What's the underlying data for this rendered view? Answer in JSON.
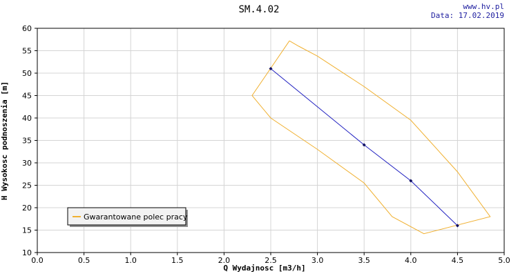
{
  "header": {
    "title": "SM.4.02",
    "site": "www.hv.pl",
    "date": "Data: 17.02.2019"
  },
  "colors": {
    "curve": "#2020c0",
    "envelope": "#f0b030",
    "grid": "#d4d4d4",
    "site_text": "#2020a0"
  },
  "chart_data": {
    "type": "line",
    "title": "SM.4.02",
    "xlabel": "Q Wydajnosc [m3/h]",
    "ylabel": "H Wysokosc podnoszenia [m]",
    "xlim": [
      0,
      5
    ],
    "ylim": [
      10,
      60
    ],
    "grid": true,
    "x_ticks": [
      "0.0",
      "0.5",
      "1.0",
      "1.5",
      "2.0",
      "2.5",
      "3.0",
      "3.5",
      "4.0",
      "4.5",
      "5.0"
    ],
    "y_ticks": [
      "10",
      "15",
      "20",
      "25",
      "30",
      "35",
      "40",
      "45",
      "50",
      "55",
      "60"
    ],
    "legend": {
      "placement": "bottom-left",
      "entries": [
        "Gwarantowane polec pracy"
      ]
    },
    "series": [
      {
        "kind": "curve",
        "points": [
          [
            2.5,
            51
          ],
          [
            3.0,
            42.5
          ],
          [
            3.5,
            34
          ],
          [
            4.0,
            26
          ],
          [
            4.5,
            16
          ]
        ],
        "markers": [
          [
            2.5,
            51
          ],
          [
            3.5,
            34
          ],
          [
            4.0,
            26
          ],
          [
            4.5,
            16
          ]
        ]
      },
      {
        "name": "Gwarantowane polec pracy",
        "kind": "envelope",
        "points": [
          [
            2.7,
            57.2
          ],
          [
            2.8,
            56
          ],
          [
            3.0,
            53.8
          ],
          [
            3.5,
            47
          ],
          [
            4.0,
            39.5
          ],
          [
            4.5,
            28
          ],
          [
            4.85,
            18
          ],
          [
            4.14,
            14.2
          ],
          [
            3.8,
            18
          ],
          [
            3.5,
            25.5
          ],
          [
            3.0,
            33
          ],
          [
            2.5,
            40
          ],
          [
            2.3,
            45
          ],
          [
            2.7,
            57.2
          ]
        ]
      }
    ]
  }
}
